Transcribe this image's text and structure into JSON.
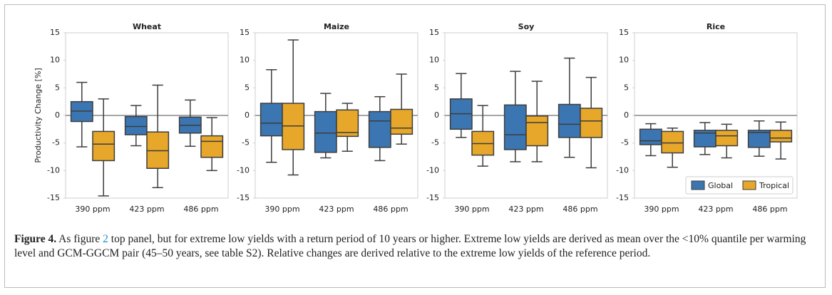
{
  "chart_data": [
    {
      "type": "box",
      "title": "Wheat",
      "ylabel": "Productivity Change [%]",
      "categories": [
        "390 ppm",
        "423 ppm",
        "486 ppm"
      ],
      "ylim": [
        -15,
        15
      ],
      "yticks": [
        -15,
        -10,
        -5,
        0,
        5,
        10,
        15
      ],
      "reference_line": 0,
      "series": [
        {
          "color": "#3b76b2",
          "whisker_low": [
            -5.7,
            -5.5,
            -5.6
          ],
          "q1": [
            -1.1,
            -3.5,
            -3.2
          ],
          "median": [
            0.8,
            -2,
            -1.8
          ],
          "q3": [
            2.5,
            -0.2,
            -0.3
          ],
          "whisker_high": [
            6,
            1.8,
            2.8
          ]
        },
        {
          "color": "#e6a72a",
          "whisker_low": [
            -14.6,
            -13.1,
            -10
          ],
          "q1": [
            -8.2,
            -9.6,
            -7.6
          ],
          "median": [
            -5.2,
            -6.4,
            -4.7
          ],
          "q3": [
            -2.9,
            -3,
            -3.7
          ],
          "whisker_high": [
            3,
            5.5,
            -0.4
          ]
        }
      ]
    },
    {
      "type": "box",
      "title": "Maize",
      "categories": [
        "390 ppm",
        "423 ppm",
        "486 ppm"
      ],
      "ylim": [
        -15,
        15
      ],
      "yticks": [
        -15,
        -10,
        -5,
        0,
        5,
        10,
        15
      ],
      "reference_line": 0,
      "series": [
        {
          "color": "#3b76b2",
          "whisker_low": [
            -8.5,
            -7.7,
            -8.2
          ],
          "q1": [
            -3.7,
            -6.7,
            -5.8
          ],
          "median": [
            -1.4,
            -3.2,
            -1
          ],
          "q3": [
            2.2,
            0.7,
            0.7
          ],
          "whisker_high": [
            8.3,
            4,
            3.4
          ]
        },
        {
          "color": "#e6a72a",
          "whisker_low": [
            -10.8,
            -6.5,
            -5.2
          ],
          "q1": [
            -6.2,
            -3.8,
            -3.4
          ],
          "median": [
            -1.9,
            -3.1,
            -2.3
          ],
          "q3": [
            2.2,
            1,
            1.1
          ],
          "whisker_high": [
            13.7,
            2.2,
            7.5
          ]
        }
      ]
    },
    {
      "type": "box",
      "title": "Soy",
      "categories": [
        "390 ppm",
        "423 ppm",
        "486 ppm"
      ],
      "ylim": [
        -15,
        15
      ],
      "yticks": [
        -15,
        -10,
        -5,
        0,
        5,
        10,
        15
      ],
      "reference_line": 0,
      "series": [
        {
          "color": "#3b76b2",
          "whisker_low": [
            -4,
            -8.4,
            -7.6
          ],
          "q1": [
            -2.5,
            -6.2,
            -4
          ],
          "median": [
            0.3,
            -3.5,
            -1.6
          ],
          "q3": [
            3,
            1.9,
            2
          ],
          "whisker_high": [
            7.6,
            8,
            10.4
          ]
        },
        {
          "color": "#e6a72a",
          "whisker_low": [
            -9.2,
            -8.4,
            -9.5
          ],
          "q1": [
            -7.2,
            -5.5,
            -4
          ],
          "median": [
            -5.1,
            -1.3,
            -1
          ],
          "q3": [
            -2.9,
            -0.1,
            1.3
          ],
          "whisker_high": [
            1.8,
            6.2,
            6.9
          ]
        }
      ]
    },
    {
      "type": "box",
      "title": "Rice",
      "legend": "lower right",
      "categories": [
        "390 ppm",
        "423 ppm",
        "486 ppm"
      ],
      "ylim": [
        -15,
        15
      ],
      "yticks": [
        -15,
        -10,
        -5,
        0,
        5,
        10,
        15
      ],
      "reference_line": 0,
      "series": [
        {
          "name": "Global",
          "color": "#3b76b2",
          "whisker_low": [
            -7.3,
            -7.1,
            -7.4
          ],
          "q1": [
            -5.3,
            -5.7,
            -5.8
          ],
          "median": [
            -4.6,
            -3.2,
            -3.1
          ],
          "q3": [
            -2.5,
            -2.7,
            -2.7
          ],
          "whisker_high": [
            -1.5,
            -1.3,
            -1
          ]
        },
        {
          "name": "Tropical",
          "color": "#e6a72a",
          "whisker_low": [
            -9.4,
            -7.7,
            -7.9
          ],
          "q1": [
            -6.8,
            -5.5,
            -4.8
          ],
          "median": [
            -5,
            -3.7,
            -4.1
          ],
          "q3": [
            -2.9,
            -2.7,
            -2.7
          ],
          "whisker_high": [
            -2.3,
            -1.6,
            -1.2
          ]
        }
      ]
    }
  ],
  "caption": {
    "label": "Figure 4.",
    "text_before": "As figure",
    "ref": "2",
    "text": "top panel, but for extreme low yields with a return period of 10 years or higher. Extreme low yields are derived as mean over the <10% quantile per warming level and GCM-GGCM pair (45–50 years, see table S2). Relative changes are derived relative to the extreme low yields of the reference period."
  }
}
